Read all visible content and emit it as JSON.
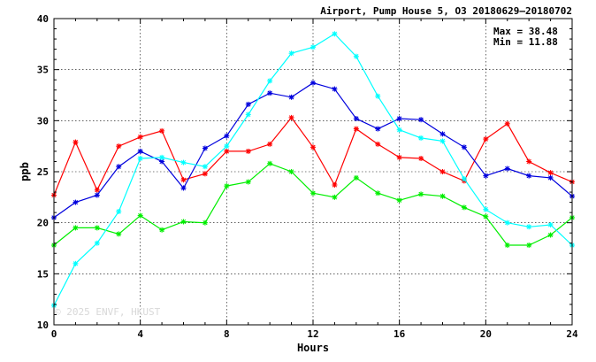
{
  "chart_data": {
    "type": "line",
    "title": "Airport, Pump House 5, O3 20180629–20180702",
    "xlabel": "Hours",
    "ylabel": "ppb",
    "xlim": [
      0,
      24
    ],
    "ylim": [
      10,
      40
    ],
    "x_ticks": [
      0,
      4,
      8,
      12,
      16,
      20,
      24
    ],
    "y_ticks": [
      10,
      15,
      20,
      25,
      30,
      35,
      40
    ],
    "grid": true,
    "annotations": {
      "max": "Max = 38.48",
      "min": "Min = 11.88"
    },
    "watermark": "© 2025  ENVF, HKUST",
    "x": [
      0,
      1,
      2,
      3,
      4,
      5,
      6,
      7,
      8,
      9,
      10,
      11,
      12,
      13,
      14,
      15,
      16,
      17,
      18,
      19,
      20,
      21,
      22,
      23,
      24
    ],
    "series": [
      {
        "color": "#ff0000",
        "values": [
          22.7,
          27.9,
          23.2,
          27.5,
          28.4,
          29.0,
          24.2,
          24.8,
          27.0,
          27.0,
          27.7,
          30.3,
          27.4,
          23.7,
          29.2,
          27.7,
          26.4,
          26.3,
          25.0,
          24.1,
          28.2,
          29.7,
          26.0,
          24.9,
          24.0
        ]
      },
      {
        "color": "#00ee00",
        "values": [
          17.8,
          19.5,
          19.5,
          18.9,
          20.7,
          19.3,
          20.1,
          20.0,
          23.6,
          24.0,
          25.8,
          25.0,
          22.9,
          22.5,
          24.4,
          22.9,
          22.2,
          22.8,
          22.6,
          21.5,
          20.6,
          17.8,
          17.8,
          18.8,
          20.5
        ]
      },
      {
        "color": "#0000dd",
        "values": [
          20.5,
          22.0,
          22.7,
          25.5,
          27.0,
          26.0,
          23.4,
          27.3,
          28.5,
          31.6,
          32.7,
          32.3,
          33.7,
          33.1,
          30.2,
          29.2,
          30.2,
          30.1,
          28.7,
          27.4,
          24.6,
          25.3,
          24.6,
          24.4,
          22.6
        ]
      },
      {
        "color": "#00ffff",
        "values": [
          11.9,
          16.0,
          18.0,
          21.1,
          26.3,
          26.4,
          25.9,
          25.5,
          27.5,
          30.6,
          33.9,
          36.6,
          37.2,
          38.5,
          36.3,
          32.4,
          29.1,
          28.3,
          28.0,
          24.3,
          21.3,
          20.0,
          19.6,
          19.8,
          17.8
        ]
      }
    ]
  }
}
